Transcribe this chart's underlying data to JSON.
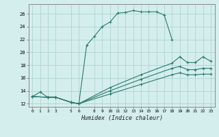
{
  "xlabel": "Humidex (Indice chaleur)",
  "background_color": "#d4eeed",
  "grid_color": "#aed4d0",
  "line_color": "#2a7a6a",
  "xlim": [
    -0.5,
    23.5
  ],
  "ylim": [
    11.5,
    27.5
  ],
  "xticks": [
    0,
    1,
    2,
    3,
    5,
    6,
    8,
    9,
    10,
    11,
    12,
    13,
    14,
    15,
    16,
    17,
    18,
    19,
    20,
    21,
    22,
    23
  ],
  "yticks": [
    12,
    14,
    16,
    18,
    20,
    22,
    24,
    26
  ],
  "lines": [
    {
      "x": [
        0,
        1,
        2,
        3,
        5,
        6,
        7,
        8,
        9,
        10,
        11,
        12,
        13,
        14,
        15,
        16,
        17,
        18
      ],
      "y": [
        13.1,
        13.8,
        13.0,
        13.0,
        12.2,
        12.0,
        21.1,
        22.5,
        24.0,
        24.7,
        26.1,
        26.2,
        26.5,
        26.3,
        26.3,
        26.3,
        25.8,
        22.0
      ]
    },
    {
      "x": [
        0,
        2,
        3,
        5,
        6,
        10,
        14,
        18,
        19,
        20,
        21,
        22,
        23
      ],
      "y": [
        13.1,
        13.0,
        13.0,
        12.2,
        12.0,
        14.5,
        16.5,
        18.3,
        19.3,
        18.4,
        18.4,
        19.3,
        18.6
      ]
    },
    {
      "x": [
        0,
        2,
        3,
        5,
        6,
        10,
        14,
        18,
        19,
        20,
        21,
        22,
        23
      ],
      "y": [
        13.1,
        13.0,
        13.0,
        12.2,
        12.0,
        14.0,
        15.8,
        17.5,
        17.8,
        17.3,
        17.3,
        17.5,
        17.5
      ]
    },
    {
      "x": [
        0,
        2,
        3,
        5,
        6,
        10,
        14,
        18,
        19,
        20,
        21,
        22,
        23
      ],
      "y": [
        13.1,
        13.0,
        13.0,
        12.2,
        12.0,
        13.5,
        15.0,
        16.5,
        16.8,
        16.5,
        16.5,
        16.6,
        16.6
      ]
    }
  ]
}
